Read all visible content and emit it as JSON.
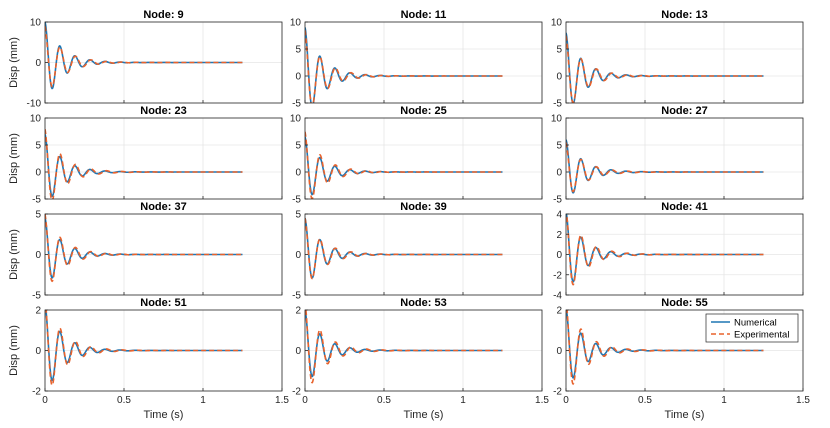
{
  "figure": {
    "xlabel": "Time (s)",
    "ylabel": "Disp (mm)",
    "legend": {
      "entries": [
        "Numerical",
        "Experimental"
      ],
      "placement": "inside-right of last panel"
    }
  },
  "colors": {
    "numerical": "#1f77b4",
    "experimental": "#e8622c",
    "axis": "#262626",
    "grid": "#e6e6e6"
  },
  "chart_data": [
    {
      "type": "line",
      "title": "Node: 9",
      "xlim": [
        0,
        1.5
      ],
      "ylim": [
        -10,
        10
      ],
      "yticks": [
        -10,
        0,
        10
      ],
      "damped": {
        "num_amp": 10,
        "exp_amp": 9,
        "freq": 10.5,
        "decay": 9.5
      }
    },
    {
      "type": "line",
      "title": "Node: 11",
      "xlim": [
        0,
        1.5
      ],
      "ylim": [
        -5,
        10
      ],
      "yticks": [
        -5,
        0,
        5,
        10
      ],
      "damped": {
        "num_amp": 9,
        "exp_amp": 8.5,
        "freq": 10.5,
        "decay": 9.5
      }
    },
    {
      "type": "line",
      "title": "Node: 13",
      "xlim": [
        0,
        1.5
      ],
      "ylim": [
        -5,
        10
      ],
      "yticks": [
        -5,
        0,
        5,
        10
      ],
      "damped": {
        "num_amp": 8,
        "exp_amp": 7.5,
        "freq": 10.5,
        "decay": 9.5
      }
    },
    {
      "type": "line",
      "title": "Node: 23",
      "xlim": [
        0,
        1.5
      ],
      "ylim": [
        -5,
        10
      ],
      "yticks": [
        -5,
        0,
        5,
        10
      ],
      "damped": {
        "num_amp": 7,
        "exp_amp": 8,
        "freq": 10.5,
        "decay": 9.5
      }
    },
    {
      "type": "line",
      "title": "Node: 25",
      "xlim": [
        0,
        1.5
      ],
      "ylim": [
        -5,
        10
      ],
      "yticks": [
        -5,
        0,
        5,
        10
      ],
      "damped": {
        "num_amp": 6.5,
        "exp_amp": 7.5,
        "freq": 10.5,
        "decay": 9.5
      }
    },
    {
      "type": "line",
      "title": "Node: 27",
      "xlim": [
        0,
        1.5
      ],
      "ylim": [
        -5,
        10
      ],
      "yticks": [
        -5,
        0,
        5,
        10
      ],
      "damped": {
        "num_amp": 6,
        "exp_amp": 5.5,
        "freq": 10.5,
        "decay": 9.5
      }
    },
    {
      "type": "line",
      "title": "Node: 37",
      "xlim": [
        0,
        1.5
      ],
      "ylim": [
        -5,
        5
      ],
      "yticks": [
        -5,
        0,
        5
      ],
      "damped": {
        "num_amp": 4.5,
        "exp_amp": 5,
        "freq": 10.5,
        "decay": 9.5
      }
    },
    {
      "type": "line",
      "title": "Node: 39",
      "xlim": [
        0,
        1.5
      ],
      "ylim": [
        -5,
        5
      ],
      "yticks": [
        -5,
        0,
        5
      ],
      "damped": {
        "num_amp": 4.5,
        "exp_amp": 4.5,
        "freq": 10.5,
        "decay": 9.5
      }
    },
    {
      "type": "line",
      "title": "Node: 41",
      "xlim": [
        0,
        1.5
      ],
      "ylim": [
        -4,
        4
      ],
      "yticks": [
        -4,
        -2,
        0,
        2,
        4
      ],
      "damped": {
        "num_amp": 4.2,
        "exp_amp": 4.5,
        "freq": 10.5,
        "decay": 9.5
      }
    },
    {
      "type": "line",
      "title": "Node: 51",
      "xlim": [
        0,
        1.5
      ],
      "ylim": [
        -2,
        2
      ],
      "yticks": [
        -2,
        0,
        2
      ],
      "damped": {
        "num_amp": 2.3,
        "exp_amp": 2.6,
        "freq": 10.5,
        "decay": 9.5
      }
    },
    {
      "type": "line",
      "title": "Node: 53",
      "xlim": [
        0,
        1.5
      ],
      "ylim": [
        -2,
        2
      ],
      "yticks": [
        -2,
        0,
        2
      ],
      "damped": {
        "num_amp": 2.0,
        "exp_amp": 2.4,
        "freq": 10.5,
        "decay": 9.5
      }
    },
    {
      "type": "line",
      "title": "Node: 55",
      "xlim": [
        0,
        1.5
      ],
      "ylim": [
        -2,
        2
      ],
      "yticks": [
        -2,
        0,
        2
      ],
      "damped": {
        "num_amp": 2.1,
        "exp_amp": 2.5,
        "freq": 10.5,
        "decay": 9.5
      }
    }
  ],
  "xticks": [
    0,
    0.5,
    1,
    1.5
  ],
  "xtick_labels": [
    "0",
    "0.5",
    "1",
    "1.5"
  ],
  "t_end": 1.25
}
